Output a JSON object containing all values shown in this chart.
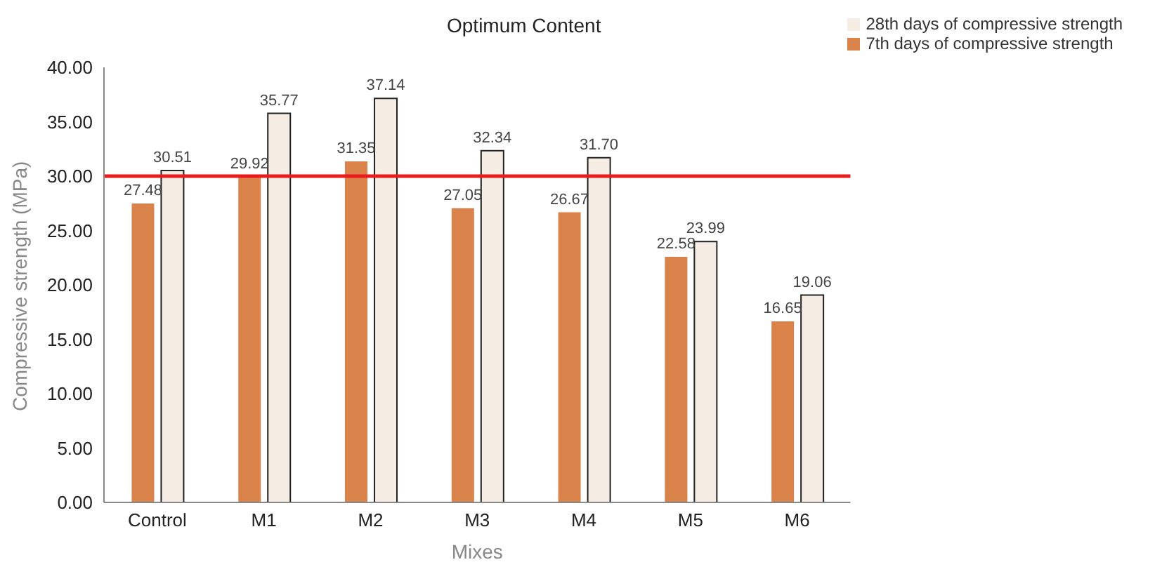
{
  "chart_data": {
    "type": "bar",
    "title": "Optimum Content",
    "xlabel": "Mixes",
    "ylabel": "Compressive strength (MPa)",
    "categories": [
      "Control",
      "M1",
      "M2",
      "M3",
      "M4",
      "M5",
      "M6"
    ],
    "series": [
      {
        "name": "7th days of compressive strength",
        "color": "#d9824a",
        "values": [
          27.48,
          29.92,
          31.35,
          27.05,
          26.67,
          22.58,
          16.65
        ],
        "value_labels": [
          "27.48",
          "29.92",
          "31.35",
          "27.05",
          "26.67",
          "22.58",
          "16.65"
        ]
      },
      {
        "name": "28th days of compressive strength",
        "color": "#f5ece4",
        "values": [
          30.51,
          35.77,
          37.14,
          32.34,
          31.7,
          23.99,
          19.06
        ],
        "value_labels": [
          "30.51",
          "35.77",
          "37.14",
          "32.34",
          "31.70",
          "23.99",
          "19.06"
        ]
      }
    ],
    "ylim": [
      0,
      40
    ],
    "yticks": [
      {
        "value": 0,
        "label": "0.00"
      },
      {
        "value": 5,
        "label": "5.00"
      },
      {
        "value": 10,
        "label": "10.00"
      },
      {
        "value": 15,
        "label": "15.00"
      },
      {
        "value": 20,
        "label": "20.00"
      },
      {
        "value": 25,
        "label": "25.00"
      },
      {
        "value": 30,
        "label": "30.00"
      },
      {
        "value": 35,
        "label": "35.00"
      },
      {
        "value": 40,
        "label": "40.00"
      }
    ],
    "ref_lines": [
      {
        "axis": "y",
        "value": 30,
        "color": "#e81c1c"
      }
    ],
    "grid": false,
    "legend": "top right"
  }
}
